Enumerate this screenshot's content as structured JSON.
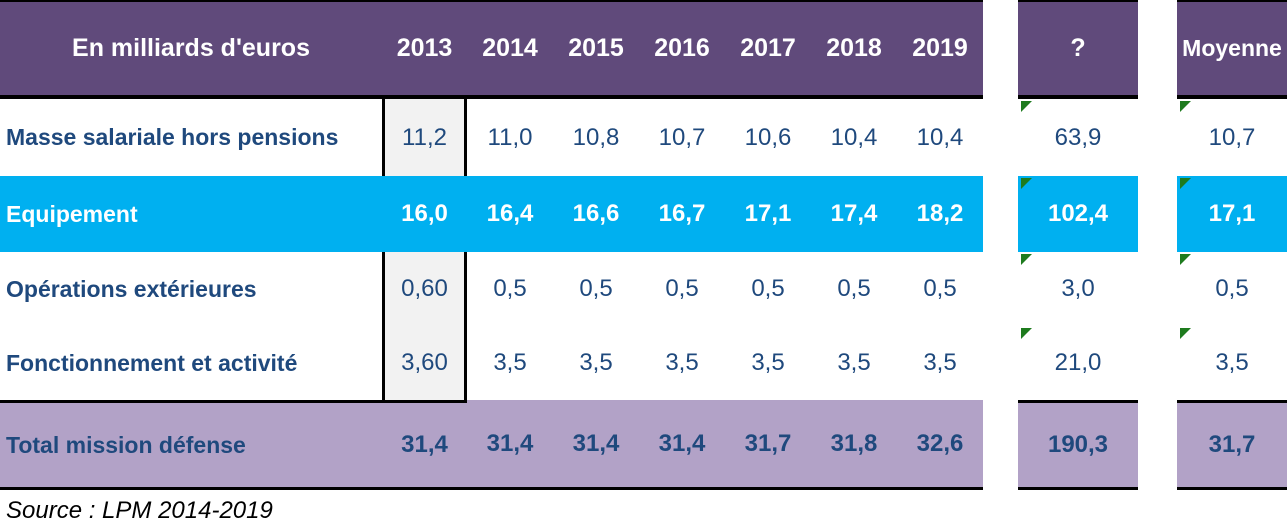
{
  "chart_data": {
    "type": "table",
    "title": "En milliards d'euros",
    "columns": [
      "2013",
      "2014",
      "2015",
      "2016",
      "2017",
      "2018",
      "2019",
      "?",
      "Moyenne"
    ],
    "rows": [
      {
        "label": "Masse salariale hors pensions",
        "values": [
          11.2,
          11.0,
          10.8,
          10.7,
          10.6,
          10.4,
          10.4,
          63.9,
          10.7
        ]
      },
      {
        "label": "Equipement",
        "values": [
          16.0,
          16.4,
          16.6,
          16.7,
          17.1,
          17.4,
          18.2,
          102.4,
          17.1
        ]
      },
      {
        "label": "Opérations extérieures",
        "values": [
          0.6,
          0.5,
          0.5,
          0.5,
          0.5,
          0.5,
          0.5,
          3.0,
          0.5
        ]
      },
      {
        "label": "Fonctionnement et activité",
        "values": [
          3.6,
          3.5,
          3.5,
          3.5,
          3.5,
          3.5,
          3.5,
          21.0,
          3.5
        ]
      },
      {
        "label": "Total mission défense",
        "values": [
          31.4,
          31.4,
          31.4,
          31.4,
          31.7,
          31.8,
          32.6,
          190.3,
          31.7
        ]
      }
    ],
    "source": "Source : LPM 2014-2019"
  },
  "table": {
    "unit_label": "En milliards d'euros",
    "years": [
      "2013",
      "2014",
      "2015",
      "2016",
      "2017",
      "2018",
      "2019"
    ],
    "sum_header": "?",
    "avg_header": "Moyenne",
    "rows": [
      {
        "label": "Masse salariale hors pensions",
        "values": [
          "11,2",
          "11,0",
          "10,8",
          "10,7",
          "10,6",
          "10,4",
          "10,4"
        ],
        "sum": "63,9",
        "avg": "10,7",
        "style": "normal",
        "note_indicator": true
      },
      {
        "label": "Equipement",
        "values": [
          "16,0",
          "16,4",
          "16,6",
          "16,7",
          "17,1",
          "17,4",
          "18,2"
        ],
        "sum": "102,4",
        "avg": "17,1",
        "style": "highlight",
        "note_indicator": true
      },
      {
        "label": "Opérations extérieures",
        "values": [
          "0,60",
          "0,5",
          "0,5",
          "0,5",
          "0,5",
          "0,5",
          "0,5"
        ],
        "sum": "3,0",
        "avg": "0,5",
        "style": "normal",
        "note_indicator": true
      },
      {
        "label": "Fonctionnement et activité",
        "values": [
          "3,60",
          "3,5",
          "3,5",
          "3,5",
          "3,5",
          "3,5",
          "3,5"
        ],
        "sum": "21,0",
        "avg": "3,5",
        "style": "normal",
        "note_indicator": true
      },
      {
        "label": "Total mission défense",
        "values": [
          "31,4",
          "31,4",
          "31,4",
          "31,4",
          "31,7",
          "31,8",
          "32,6"
        ],
        "sum": "190,3",
        "avg": "31,7",
        "style": "total",
        "note_indicator": false
      }
    ]
  },
  "footer": {
    "source": "Source : LPM 2014-2019"
  },
  "colors": {
    "header_purple": "#604A7B",
    "highlight_cyan": "#00B0F0",
    "total_purple": "#B2A2C7",
    "text_navy": "#1F497D",
    "col_2013_gray": "#F2F2F2",
    "note_indicator_green": "#1E7B1E",
    "border_black": "#000000"
  }
}
